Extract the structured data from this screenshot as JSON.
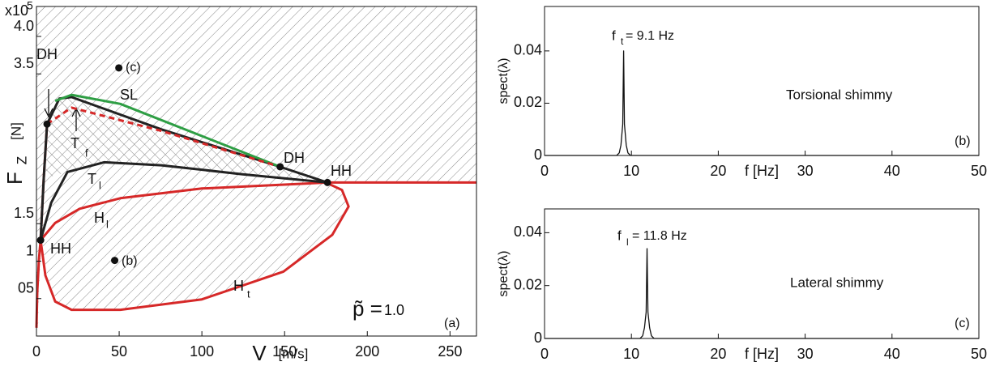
{
  "chart_data": [
    {
      "type": "line",
      "x_label": "V",
      "x_label_unit": "[m/s]",
      "y_label": "F",
      "y_label_sub": "Z",
      "y_label_unit": "[N]",
      "y_multiplier": "x10",
      "y_exponent": "5",
      "xlim": [
        0,
        266
      ],
      "ylim": [
        0,
        4.4
      ],
      "xticks": [
        0,
        50,
        100,
        150,
        200,
        250
      ],
      "yticks": [
        {
          "value": 0.5,
          "label": "05"
        },
        1,
        {
          "value": 1.5,
          "label": "1.5"
        },
        {
          "value": 3.5,
          "label": "3.5"
        },
        {
          "value": 4.0,
          "label": "4.0"
        }
      ],
      "series": [
        {
          "color": "#d62828",
          "dash": false,
          "x": [
            0,
            0.5,
            1.5,
            2.5,
            11.3,
            26.1,
            50.7,
            100,
            175.9,
            266
          ],
          "values": [
            0.11,
            0.59,
            1.03,
            1.28,
            1.51,
            1.7,
            1.84,
            1.97,
            2.05,
            2.05
          ]
        },
        {
          "color": "#d62828",
          "dash": false,
          "x": [
            2.5,
            5.4,
            11.3,
            21.2,
            50.7,
            100,
            149.3,
            178.8,
            188.7,
            184.7,
            175.9
          ],
          "values": [
            1.28,
            0.81,
            0.46,
            0.35,
            0.35,
            0.49,
            0.86,
            1.35,
            1.73,
            1.95,
            2.04
          ]
        },
        {
          "color": "#d62828",
          "dash": false,
          "x": [
            2.5,
            4.4,
            6.4
          ],
          "values": [
            1.28,
            2.11,
            2.83
          ]
        },
        {
          "color": "#222222",
          "dash": false,
          "x": [
            2.5,
            4.4,
            6.4,
            13.8,
            21.2,
            75.4,
            147.3,
            175.9
          ],
          "values": [
            1.28,
            2.11,
            2.83,
            3.17,
            3.19,
            2.76,
            2.26,
            2.05
          ]
        },
        {
          "color": "#222222",
          "dash": false,
          "x": [
            2.5,
            8.9,
            18.7,
            40.9,
            75.4,
            124.6,
            175.9
          ],
          "values": [
            1.28,
            1.78,
            2.19,
            2.32,
            2.28,
            2.16,
            2.05
          ]
        },
        {
          "color": "#2e9e44",
          "dash": false,
          "x": [
            11.3,
            21.2,
            50.7,
            100,
            147.3
          ],
          "values": [
            3.14,
            3.22,
            3.1,
            2.67,
            2.26
          ]
        },
        {
          "color": "#d62828",
          "dash": true,
          "x": [
            6.4,
            21.2,
            75.4,
            147.3
          ],
          "values": [
            2.83,
            3.05,
            2.74,
            2.26
          ]
        }
      ],
      "markers": {
        "x": [
          6.4,
          2.5,
          175.9,
          147.3,
          49.8,
          47.3
        ],
        "values": [
          2.83,
          1.28,
          2.05,
          2.26,
          3.58,
          1.01
        ]
      },
      "annotations": [
        "DH",
        "DH",
        "HH",
        "HH",
        "SL",
        "T",
        "f",
        "T",
        "l",
        "H",
        "l",
        "H",
        "t",
        "(c)",
        "(b)",
        "(a)",
        "p̃ =",
        "1.0"
      ]
    },
    {
      "type": "line",
      "x_label": "f [Hz]",
      "y_label": "spect(λ)",
      "xlim": [
        0,
        50
      ],
      "ylim": [
        0,
        0.057
      ],
      "xticks": [
        0,
        10,
        20,
        30,
        40,
        50
      ],
      "yticks": [
        0,
        0.02,
        0.04
      ],
      "series": [
        {
          "color": "#111111",
          "dash": false,
          "x": [
            0,
            8.3,
            8.6,
            8.8,
            9.0,
            9.1,
            9.2,
            9.4,
            9.6,
            9.9,
            50
          ],
          "values": [
            0,
            0,
            0.001,
            0.004,
            0.012,
            0.04,
            0.012,
            0.004,
            0.001,
            0,
            0
          ]
        }
      ],
      "annotations": [
        "f",
        "t",
        " = 9.1 Hz",
        "Torsional shimmy",
        "(b)"
      ]
    },
    {
      "type": "line",
      "x_label": "f [Hz]",
      "y_label": "spect(λ)",
      "xlim": [
        0,
        50
      ],
      "ylim": [
        0,
        0.049
      ],
      "xticks": [
        0,
        10,
        20,
        30,
        40,
        50
      ],
      "yticks": [
        0,
        0.02,
        0.04
      ],
      "series": [
        {
          "color": "#111111",
          "dash": false,
          "x": [
            0,
            11.0,
            11.3,
            11.5,
            11.7,
            11.8,
            11.9,
            12.1,
            12.3,
            12.6,
            50
          ],
          "values": [
            0,
            0,
            0.001,
            0.004,
            0.01,
            0.034,
            0.01,
            0.004,
            0.001,
            0,
            0
          ]
        }
      ],
      "annotations": [
        "f",
        "l",
        " = 11.8 Hz",
        "Lateral shimmy",
        "(c)"
      ]
    }
  ]
}
